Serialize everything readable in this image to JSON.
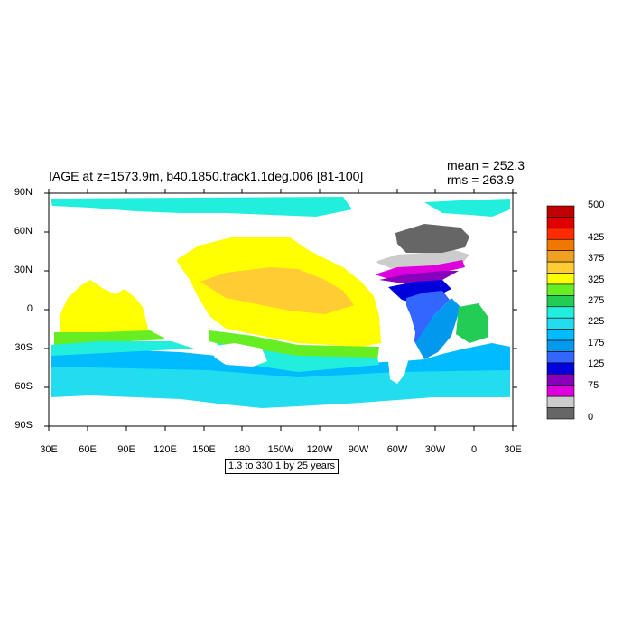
{
  "map": {
    "title": "IAGE at z=1573.9m, b40.1850.track1.1deg.006 [81-100]",
    "stats": {
      "mean": "mean = 252.3",
      "rms": "rms = 263.9"
    },
    "lat_labels": [
      "90N",
      "60N",
      "30N",
      "0",
      "30S",
      "60S",
      "90S"
    ],
    "lon_labels": [
      "30E",
      "60E",
      "90E",
      "120E",
      "150E",
      "180",
      "150W",
      "120W",
      "90W",
      "60W",
      "30W",
      "0",
      "30E"
    ],
    "subnote": "1.3 to 330.1 by 25 years",
    "colorbar": {
      "labels": [
        "500",
        "425",
        "375",
        "325",
        "275",
        "225",
        "175",
        "125",
        "75",
        "0"
      ],
      "colors": [
        "#c00000",
        "#e00000",
        "#ff2a00",
        "#f07800",
        "#f0a020",
        "#ffcc33",
        "#ffff00",
        "#66ee22",
        "#22cc55",
        "#22eedd",
        "#22ddee",
        "#00bbff",
        "#0099ee",
        "#3366ff",
        "#0000dd",
        "#8800bb",
        "#dd00dd",
        "#cccccc",
        "#666666"
      ]
    },
    "palette": {
      "land": "#ffffff",
      "yellow": "#ffff00",
      "orange": "#ffcc33",
      "green": "#66ee22",
      "cyan": "#22eedd",
      "lightblue": "#22ddee",
      "blue1": "#00bbff",
      "blue2": "#0099ee",
      "blue3": "#3366ff",
      "navy": "#0000dd",
      "purple": "#8800bb",
      "magenta": "#dd00dd",
      "lightgray": "#cccccc",
      "darkgray": "#666666"
    }
  }
}
